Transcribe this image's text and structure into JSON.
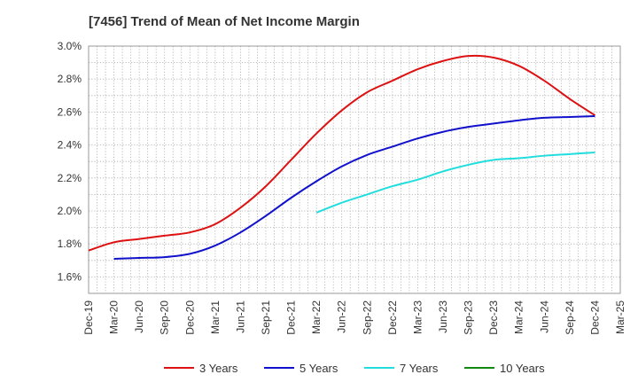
{
  "chart_data": {
    "type": "line",
    "title": "[7456]  Trend of Mean of Net Income Margin",
    "xlabel": "",
    "ylabel": "",
    "categories": [
      "Dec-19",
      "Mar-20",
      "Jun-20",
      "Sep-20",
      "Dec-20",
      "Mar-21",
      "Jun-21",
      "Sep-21",
      "Dec-21",
      "Mar-22",
      "Jun-22",
      "Sep-22",
      "Dec-22",
      "Mar-23",
      "Jun-23",
      "Sep-23",
      "Dec-23",
      "Mar-24",
      "Jun-24",
      "Sep-24",
      "Dec-24",
      "Mar-25"
    ],
    "y_ticks": [
      "3.0%",
      "2.8%",
      "2.6%",
      "2.4%",
      "2.2%",
      "2.0%",
      "1.8%",
      "1.6%"
    ],
    "ylim": [
      1.5,
      3.0
    ],
    "grid": true,
    "legend_position": "bottom",
    "series": [
      {
        "name": "3 Years",
        "color": "#dd1111",
        "values": [
          1.76,
          1.81,
          1.83,
          1.85,
          1.87,
          1.92,
          2.02,
          2.15,
          2.31,
          2.47,
          2.61,
          2.72,
          2.79,
          2.86,
          2.91,
          2.94,
          2.93,
          2.88,
          2.79,
          2.68,
          2.58,
          null
        ]
      },
      {
        "name": "5 Years",
        "color": "#1111cc",
        "values": [
          null,
          1.71,
          1.715,
          1.72,
          1.74,
          1.79,
          1.87,
          1.97,
          2.08,
          2.18,
          2.27,
          2.34,
          2.39,
          2.44,
          2.48,
          2.51,
          2.53,
          2.55,
          2.565,
          2.57,
          2.575,
          null
        ]
      },
      {
        "name": "7 Years",
        "color": "#22dddd",
        "values": [
          null,
          null,
          null,
          null,
          null,
          null,
          null,
          null,
          null,
          1.99,
          2.05,
          2.1,
          2.15,
          2.19,
          2.24,
          2.28,
          2.31,
          2.32,
          2.335,
          2.345,
          2.355,
          null
        ]
      },
      {
        "name": "10 Years",
        "color": "#118811",
        "values": [
          null,
          null,
          null,
          null,
          null,
          null,
          null,
          null,
          null,
          null,
          null,
          null,
          null,
          null,
          null,
          null,
          null,
          null,
          null,
          null,
          null,
          null
        ]
      }
    ]
  }
}
